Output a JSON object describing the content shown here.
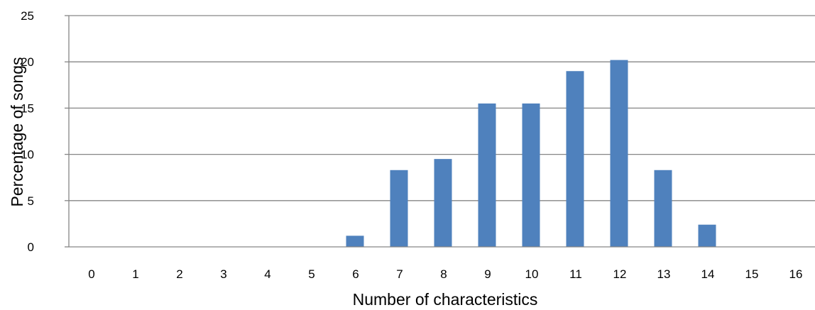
{
  "chart_data": {
    "type": "bar",
    "title": "",
    "xlabel": "Number of characteristics",
    "ylabel": "Percentage of songs",
    "categories": [
      "0",
      "1",
      "2",
      "3",
      "4",
      "5",
      "6",
      "7",
      "8",
      "9",
      "10",
      "11",
      "12",
      "13",
      "14",
      "15",
      "16"
    ],
    "values": [
      0,
      0,
      0,
      0,
      0,
      0,
      1.2,
      8.3,
      9.5,
      15.5,
      15.5,
      19.0,
      20.2,
      8.3,
      2.4,
      0,
      0
    ],
    "ylim": [
      0,
      25
    ],
    "yticks": [
      "0",
      "5",
      "10",
      "15",
      "20",
      "25"
    ],
    "grid": true,
    "legend": "none",
    "colors": {
      "bar": "#4F81BD",
      "grid": "#868686",
      "axis": "#868686"
    }
  }
}
